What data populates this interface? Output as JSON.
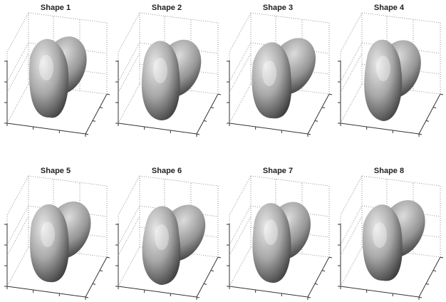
{
  "panels": [
    {
      "title": "Shape 1"
    },
    {
      "title": "Shape 2"
    },
    {
      "title": "Shape 3"
    },
    {
      "title": "Shape 4"
    },
    {
      "title": "Shape 5"
    },
    {
      "title": "Shape 6"
    },
    {
      "title": "Shape 7"
    },
    {
      "title": "Shape 8"
    }
  ]
}
